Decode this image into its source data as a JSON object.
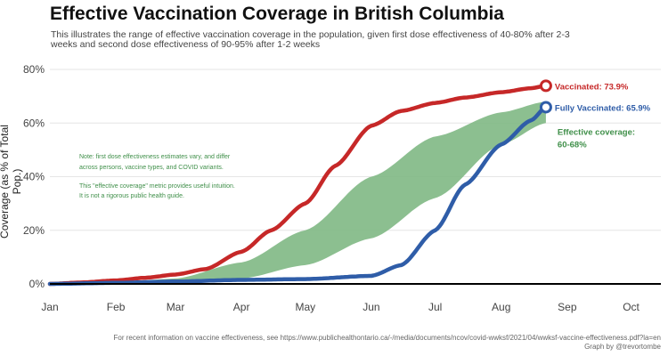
{
  "title": "Effective Vaccination Coverage in British Columbia",
  "subtitle": "This illustrates the range of effective vaccination coverage in the population, given first dose effectiveness of 40-80% after 2-3 weeks and second dose effectiveness of 90-95% after 1-2 weeks",
  "footnote": {
    "source": "For recent information on vaccine effectiveness, see https://www.publichealthontario.ca/-/media/documents/ncov/covid-wwksf/2021/04/wwksf-vaccine-effectiveness.pdf?la=en",
    "credit": "Graph by @trevortombe"
  },
  "notes": [
    "Note: first dose effectiveness estimates vary, and differ",
    "across persons, vaccine types, and COVID variants.",
    "This \"effective coverage\" metric provides useful intuition.",
    "It is not a rigorous public health guide."
  ],
  "colors": {
    "vaccinated": "#c62828",
    "fully_vaccinated": "#2f5da8",
    "effective_band": "#7fb884",
    "effective_label": "#3f8f49",
    "grid": "#e6e6e6",
    "zero_line": "#000000"
  },
  "chart_data": {
    "type": "line",
    "title": "Effective Vaccination Coverage in British Columbia",
    "xlabel": "",
    "ylabel": "Coverage (as % of Total Pop.)",
    "x_ticks": [
      "Jan",
      "Feb",
      "Mar",
      "Apr",
      "May",
      "Jun",
      "Jul",
      "Aug",
      "Sep",
      "Oct"
    ],
    "y_ticks": [
      "0%",
      "20%",
      "40%",
      "60%",
      "80%"
    ],
    "ylim": [
      0,
      80
    ],
    "xlim": [
      "2021-01-01",
      "2021-10-15"
    ],
    "grid": true,
    "series": [
      {
        "name": "Vaccinated",
        "end_label": "Vaccinated: 73.9%",
        "x": [
          "2021-01-01",
          "2021-01-15",
          "2021-02-01",
          "2021-02-15",
          "2021-03-01",
          "2021-03-15",
          "2021-04-01",
          "2021-04-15",
          "2021-05-01",
          "2021-05-15",
          "2021-06-01",
          "2021-06-15",
          "2021-07-01",
          "2021-07-15",
          "2021-08-01",
          "2021-08-15",
          "2021-08-22"
        ],
        "y": [
          0.0,
          0.5,
          1.3,
          2.3,
          3.5,
          5.5,
          12.0,
          20.0,
          30.0,
          44.0,
          59.0,
          64.5,
          67.5,
          69.5,
          71.5,
          73.0,
          73.9
        ]
      },
      {
        "name": "Fully Vaccinated",
        "end_label": "Fully Vaccinated: 65.9%",
        "x": [
          "2021-01-01",
          "2021-02-01",
          "2021-03-01",
          "2021-04-01",
          "2021-05-01",
          "2021-06-01",
          "2021-06-15",
          "2021-07-01",
          "2021-07-15",
          "2021-08-01",
          "2021-08-15",
          "2021-08-22"
        ],
        "y": [
          0.0,
          0.4,
          0.9,
          1.5,
          1.8,
          3.0,
          7.0,
          20.0,
          37.0,
          52.0,
          61.0,
          65.9
        ]
      },
      {
        "name": "Effective coverage",
        "end_label": "Effective coverage:",
        "end_label_sub": "60-68%",
        "x": [
          "2021-01-01",
          "2021-02-01",
          "2021-03-01",
          "2021-04-01",
          "2021-05-01",
          "2021-06-01",
          "2021-07-01",
          "2021-08-01",
          "2021-08-22"
        ],
        "low": [
          0.0,
          0.3,
          0.8,
          2.0,
          7.0,
          17.0,
          32.0,
          52.0,
          60.0
        ],
        "high": [
          0.0,
          0.6,
          2.0,
          8.0,
          20.0,
          40.0,
          55.0,
          64.0,
          68.0
        ]
      }
    ]
  }
}
